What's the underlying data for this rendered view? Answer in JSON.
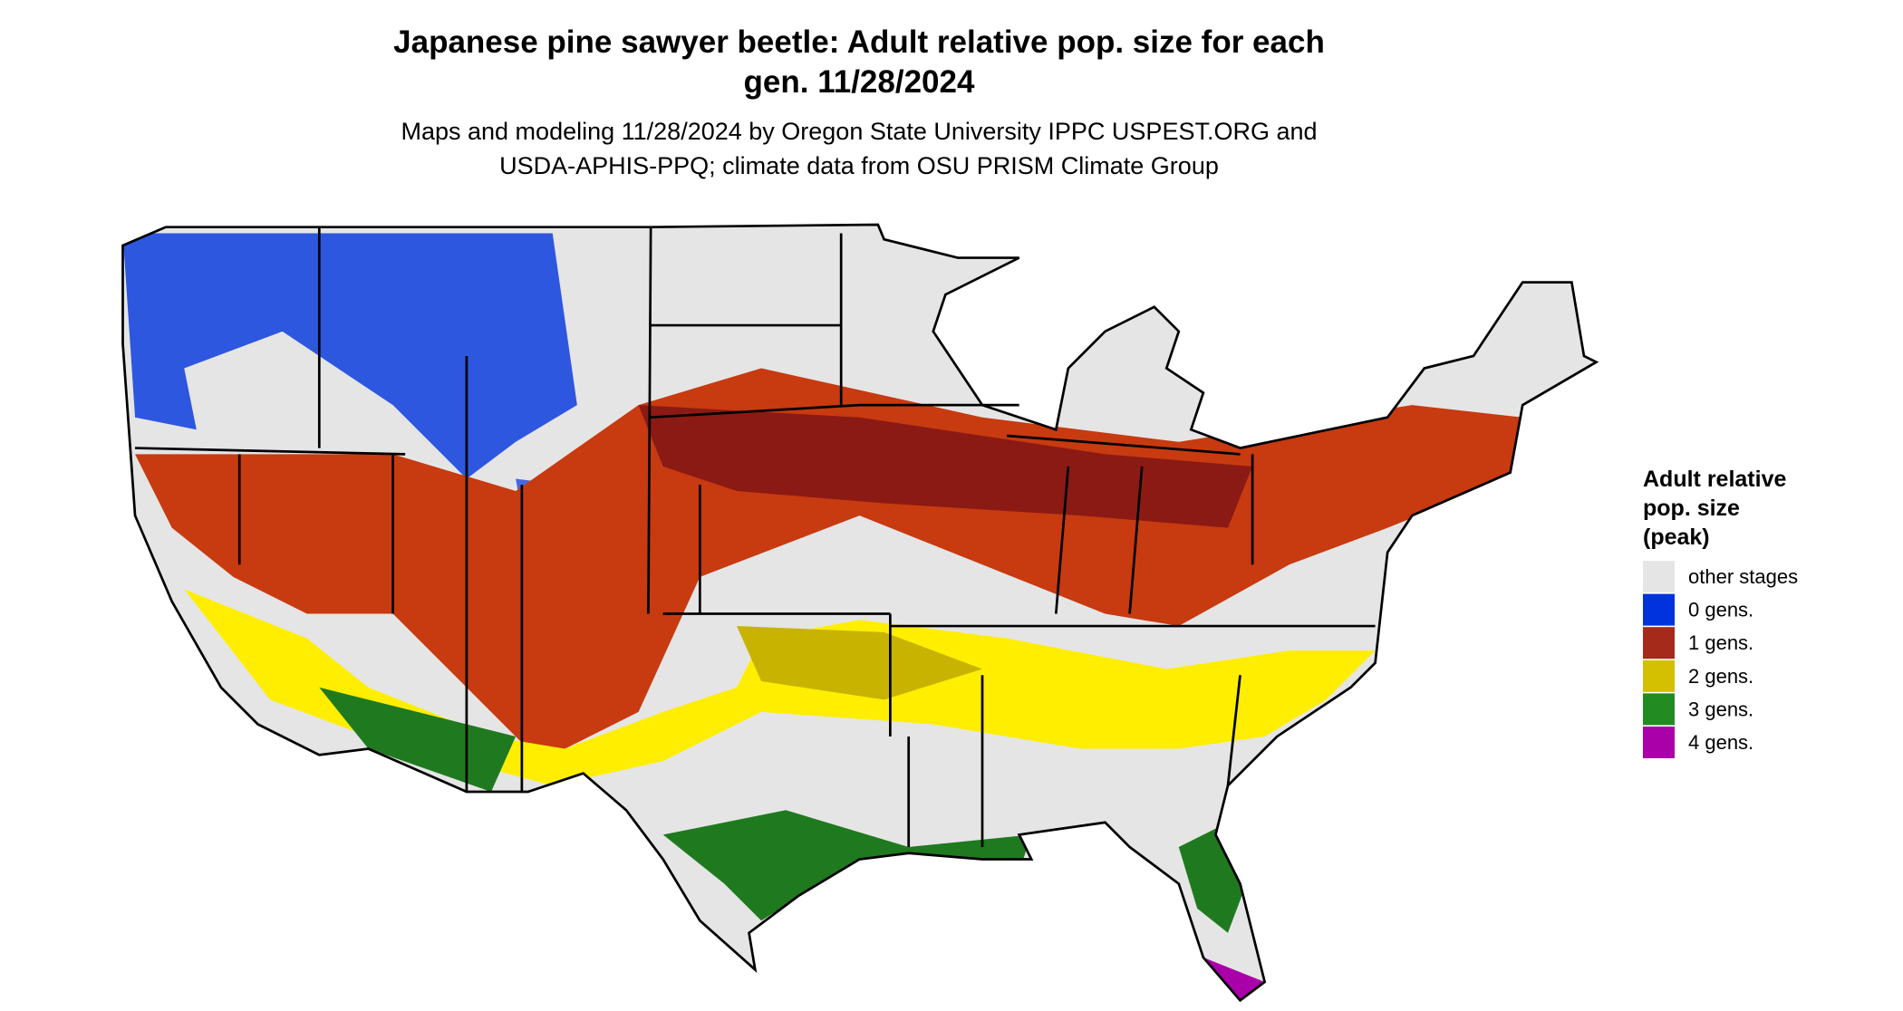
{
  "header": {
    "title_lines": [
      "Japanese pine sawyer beetle: Adult relative pop. size for each",
      "gen. 11/28/2024"
    ],
    "subtitle_lines": [
      "Maps and modeling 11/28/2024 by Oregon State University IPPC USPEST.ORG and",
      "USDA-APHIS-PPQ; climate data from OSU PRISM Climate Group"
    ]
  },
  "legend": {
    "title_lines": [
      "Adult relative",
      "pop. size",
      "(peak)"
    ],
    "items": [
      {
        "label": "other stages",
        "color": "#e5e5e5"
      },
      {
        "label": "0 gens.",
        "color": "#0033dd"
      },
      {
        "label": "1 gens.",
        "color": "#a52a1a"
      },
      {
        "label": "2 gens.",
        "color": "#d4c000"
      },
      {
        "label": "3 gens.",
        "color": "#228b22"
      },
      {
        "label": "4 gens.",
        "color": "#aa00aa"
      }
    ]
  }
}
